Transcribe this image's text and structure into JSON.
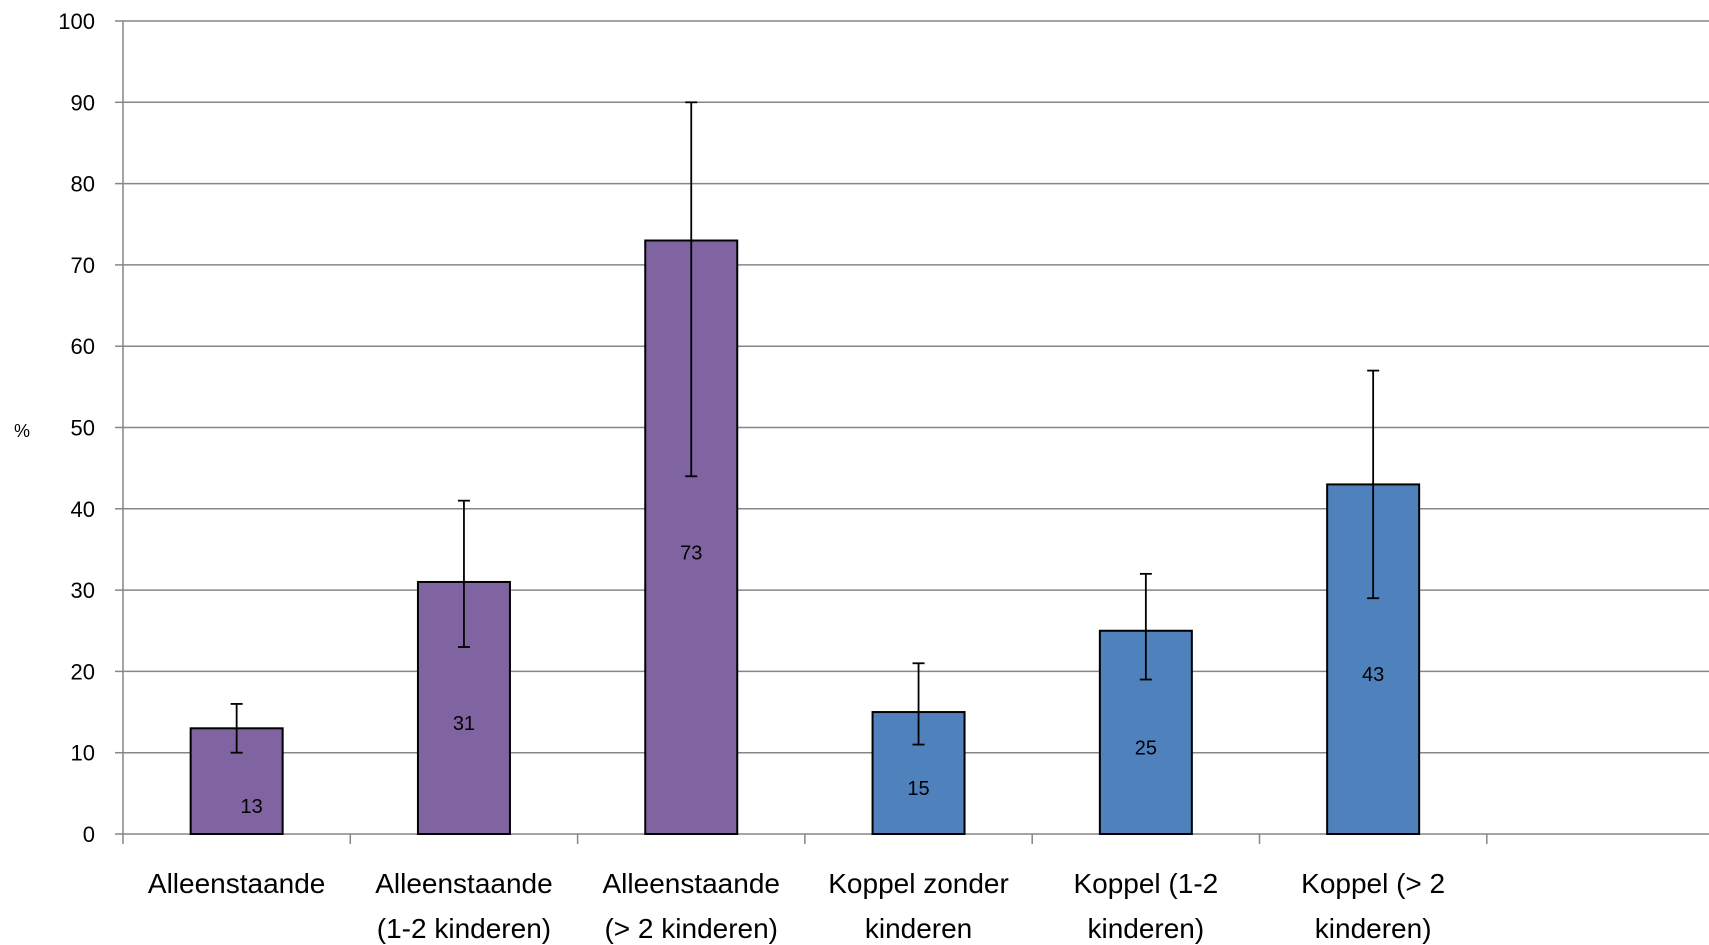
{
  "chart_data": {
    "type": "bar",
    "title": "",
    "xlabel": "",
    "ylabel": "%",
    "ylim": [
      0,
      100
    ],
    "yticks": [
      0,
      10,
      20,
      30,
      40,
      50,
      60,
      70,
      80,
      90,
      100
    ],
    "grid": true,
    "categories": [
      [
        "Alleenstaande"
      ],
      [
        "Alleenstaande",
        "(1-2 kinderen)"
      ],
      [
        "Alleenstaande",
        "(> 2 kinderen)"
      ],
      [
        "Koppel zonder",
        "kinderen"
      ],
      [
        "Koppel (1-2",
        "kinderen)"
      ],
      [
        "Koppel (> 2",
        "kinderen)"
      ]
    ],
    "values": [
      13,
      31,
      73,
      15,
      25,
      43
    ],
    "error_low": [
      10,
      23,
      44,
      11,
      19,
      29
    ],
    "error_high": [
      16,
      41,
      90,
      21,
      32,
      57
    ],
    "data_labels": [
      "13",
      "31",
      "73",
      "15",
      "25",
      "43"
    ],
    "colors": [
      "#8064A2",
      "#8064A2",
      "#8064A2",
      "#4F81BD",
      "#4F81BD",
      "#4F81BD"
    ],
    "grid_color": "#868686",
    "axis_color": "#868686",
    "bar_border_color": "#000000"
  }
}
